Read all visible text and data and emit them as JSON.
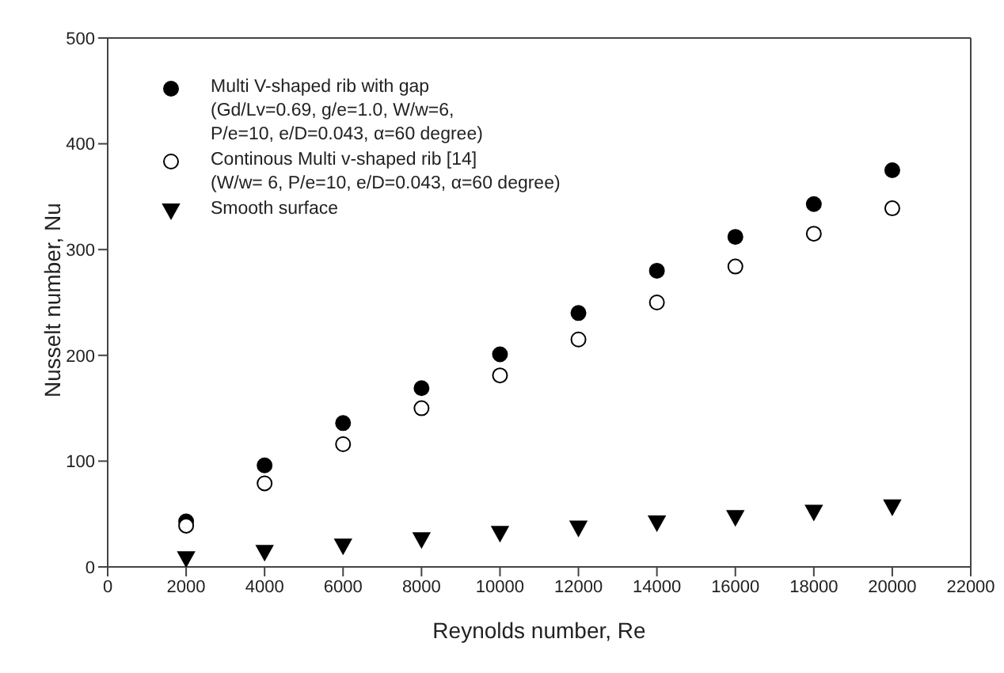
{
  "chart_data": {
    "type": "scatter",
    "xlabel": "Reynolds number, Re",
    "ylabel": "Nusselt number, Nu",
    "x": [
      2000,
      4000,
      6000,
      8000,
      10000,
      12000,
      14000,
      16000,
      18000,
      20000
    ],
    "series": [
      {
        "name": "Multi V-shaped rib with gap\n(Gd/Lv=0.69, g/e=1.0, W/w=6,\nP/e=10, e/D=0.043, α=60 degree)",
        "color": "#000000",
        "marker": "circle",
        "values": [
          43,
          96,
          136,
          169,
          201,
          240,
          280,
          312,
          343,
          375
        ]
      },
      {
        "name": "Continous Multi v-shaped rib [14]\n(W/w= 6, P/e=10, e/D=0.043, α=60 degree)",
        "color": "#ffffff",
        "marker": "circle",
        "values": [
          39,
          79,
          116,
          150,
          181,
          215,
          250,
          284,
          315,
          339
        ]
      },
      {
        "name": "Smooth surface",
        "color": "#000000",
        "marker": "triangle",
        "values": [
          8,
          14,
          20,
          26,
          32,
          37,
          42,
          47,
          52,
          57
        ]
      }
    ],
    "xlim": [
      0,
      22000
    ],
    "xticks": [
      0,
      2000,
      4000,
      6000,
      8000,
      10000,
      12000,
      14000,
      16000,
      18000,
      20000,
      22000
    ],
    "ylim": [
      0,
      500
    ],
    "yticks": [
      0,
      100,
      200,
      300,
      400,
      500
    ],
    "legend": "top left"
  }
}
